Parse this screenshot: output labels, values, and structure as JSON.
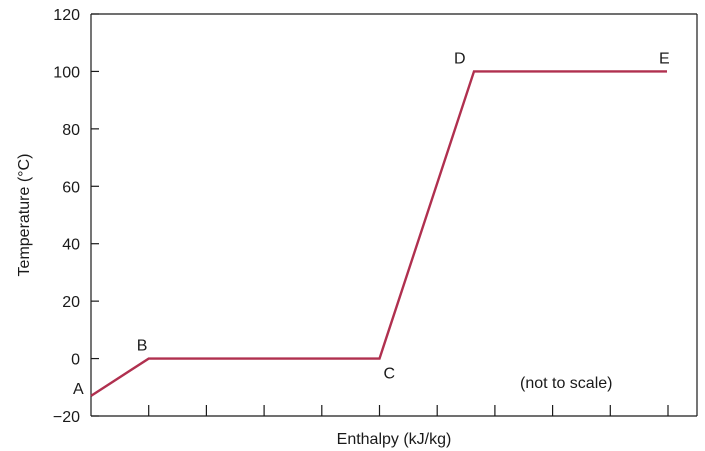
{
  "chart_data": {
    "type": "line",
    "title": "",
    "xlabel": "Enthalpy (kJ/kg)",
    "ylabel": "Temperature (°C)",
    "ylim": [
      -20,
      120
    ],
    "yticks": [
      "−20",
      "0",
      "20",
      "40",
      "60",
      "80",
      "100",
      "120"
    ],
    "xtick_count": 10,
    "grid": false,
    "note": "(not to scale)",
    "series": [
      {
        "color": "#b0304f",
        "points": [
          {
            "label": "A",
            "y": -13
          },
          {
            "label": "B",
            "y": 0
          },
          {
            "label": "",
            "y": 0
          },
          {
            "label": "C",
            "y": 0
          },
          {
            "label": "D",
            "y": 100
          },
          {
            "label": "E",
            "y": 100
          }
        ]
      }
    ]
  }
}
